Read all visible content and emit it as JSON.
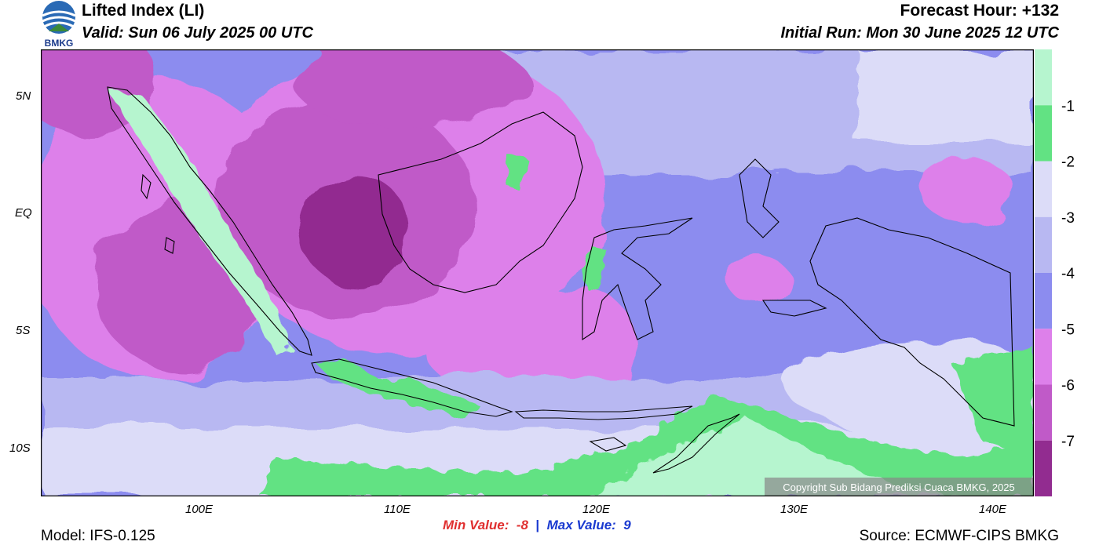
{
  "header": {
    "title": "Lifted Index (LI)",
    "valid": "Valid: Sun 06 July 2025 00 UTC",
    "forecast_hour": "Forecast Hour: +132",
    "initial_run": "Initial Run: Mon 30 June 2025 12 UTC"
  },
  "logo": {
    "text": "BMKG"
  },
  "footer": {
    "model": "Model: IFS-0.125",
    "source": "Source: ECMWF-CIPS BMKG",
    "min_label": "Min Value:",
    "min_value": "-8",
    "separator": "|",
    "max_label": "Max Value:",
    "max_value": "9"
  },
  "map": {
    "copyright": "Copyright Sub Bidang Prediksi Cuaca BMKG, 2025",
    "lat_labels": [
      "5N",
      "EQ",
      "5S",
      "10S"
    ],
    "lon_labels": [
      "100E",
      "110E",
      "120E",
      "130E",
      "140E"
    ]
  },
  "colorbar": {
    "labels": [
      "-1",
      "-2",
      "-3",
      "-4",
      "-5",
      "-6",
      "-7"
    ],
    "colors": [
      "#b6f5cf",
      "#62e283",
      "#dcdcf8",
      "#b8b8f2",
      "#8c8cef",
      "#dd80ea",
      "#c05ac8",
      "#922c90"
    ]
  },
  "colors": {
    "land_outline": "#000000",
    "min_text": "#e03030",
    "max_text": "#1a3ad0"
  }
}
